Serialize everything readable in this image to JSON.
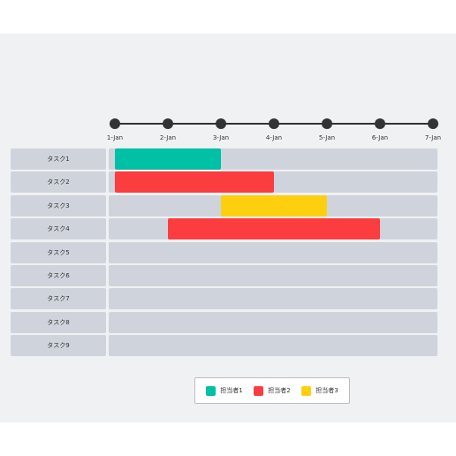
{
  "chart_data": {
    "type": "gantt",
    "timeline": [
      "1-Jan",
      "2-Jan",
      "3-Jan",
      "4-Jan",
      "5-Jan",
      "6-Jan",
      "7-Jan"
    ],
    "tasks": [
      {
        "label": "タスク1",
        "start": "1-Jan",
        "end": "3-Jan",
        "assignee": "担当者1"
      },
      {
        "label": "タスク2",
        "start": "1-Jan",
        "end": "4-Jan",
        "assignee": "担当者2"
      },
      {
        "label": "タスク3",
        "start": "3-Jan",
        "end": "5-Jan",
        "assignee": "担当者3"
      },
      {
        "label": "タスク4",
        "start": "2-Jan",
        "end": "6-Jan",
        "assignee": "担当者2"
      },
      {
        "label": "タスク5",
        "start": null,
        "end": null,
        "assignee": null
      },
      {
        "label": "タスク6",
        "start": null,
        "end": null,
        "assignee": null
      },
      {
        "label": "タスク7",
        "start": null,
        "end": null,
        "assignee": null
      },
      {
        "label": "タスク8",
        "start": null,
        "end": null,
        "assignee": null
      },
      {
        "label": "タスク9",
        "start": null,
        "end": null,
        "assignee": null
      }
    ],
    "legend": [
      {
        "name": "担当者1",
        "color": "#00c0a5"
      },
      {
        "name": "担当者2",
        "color": "#fc3d3f"
      },
      {
        "name": "担当者3",
        "color": "#fdcf0f"
      }
    ]
  }
}
